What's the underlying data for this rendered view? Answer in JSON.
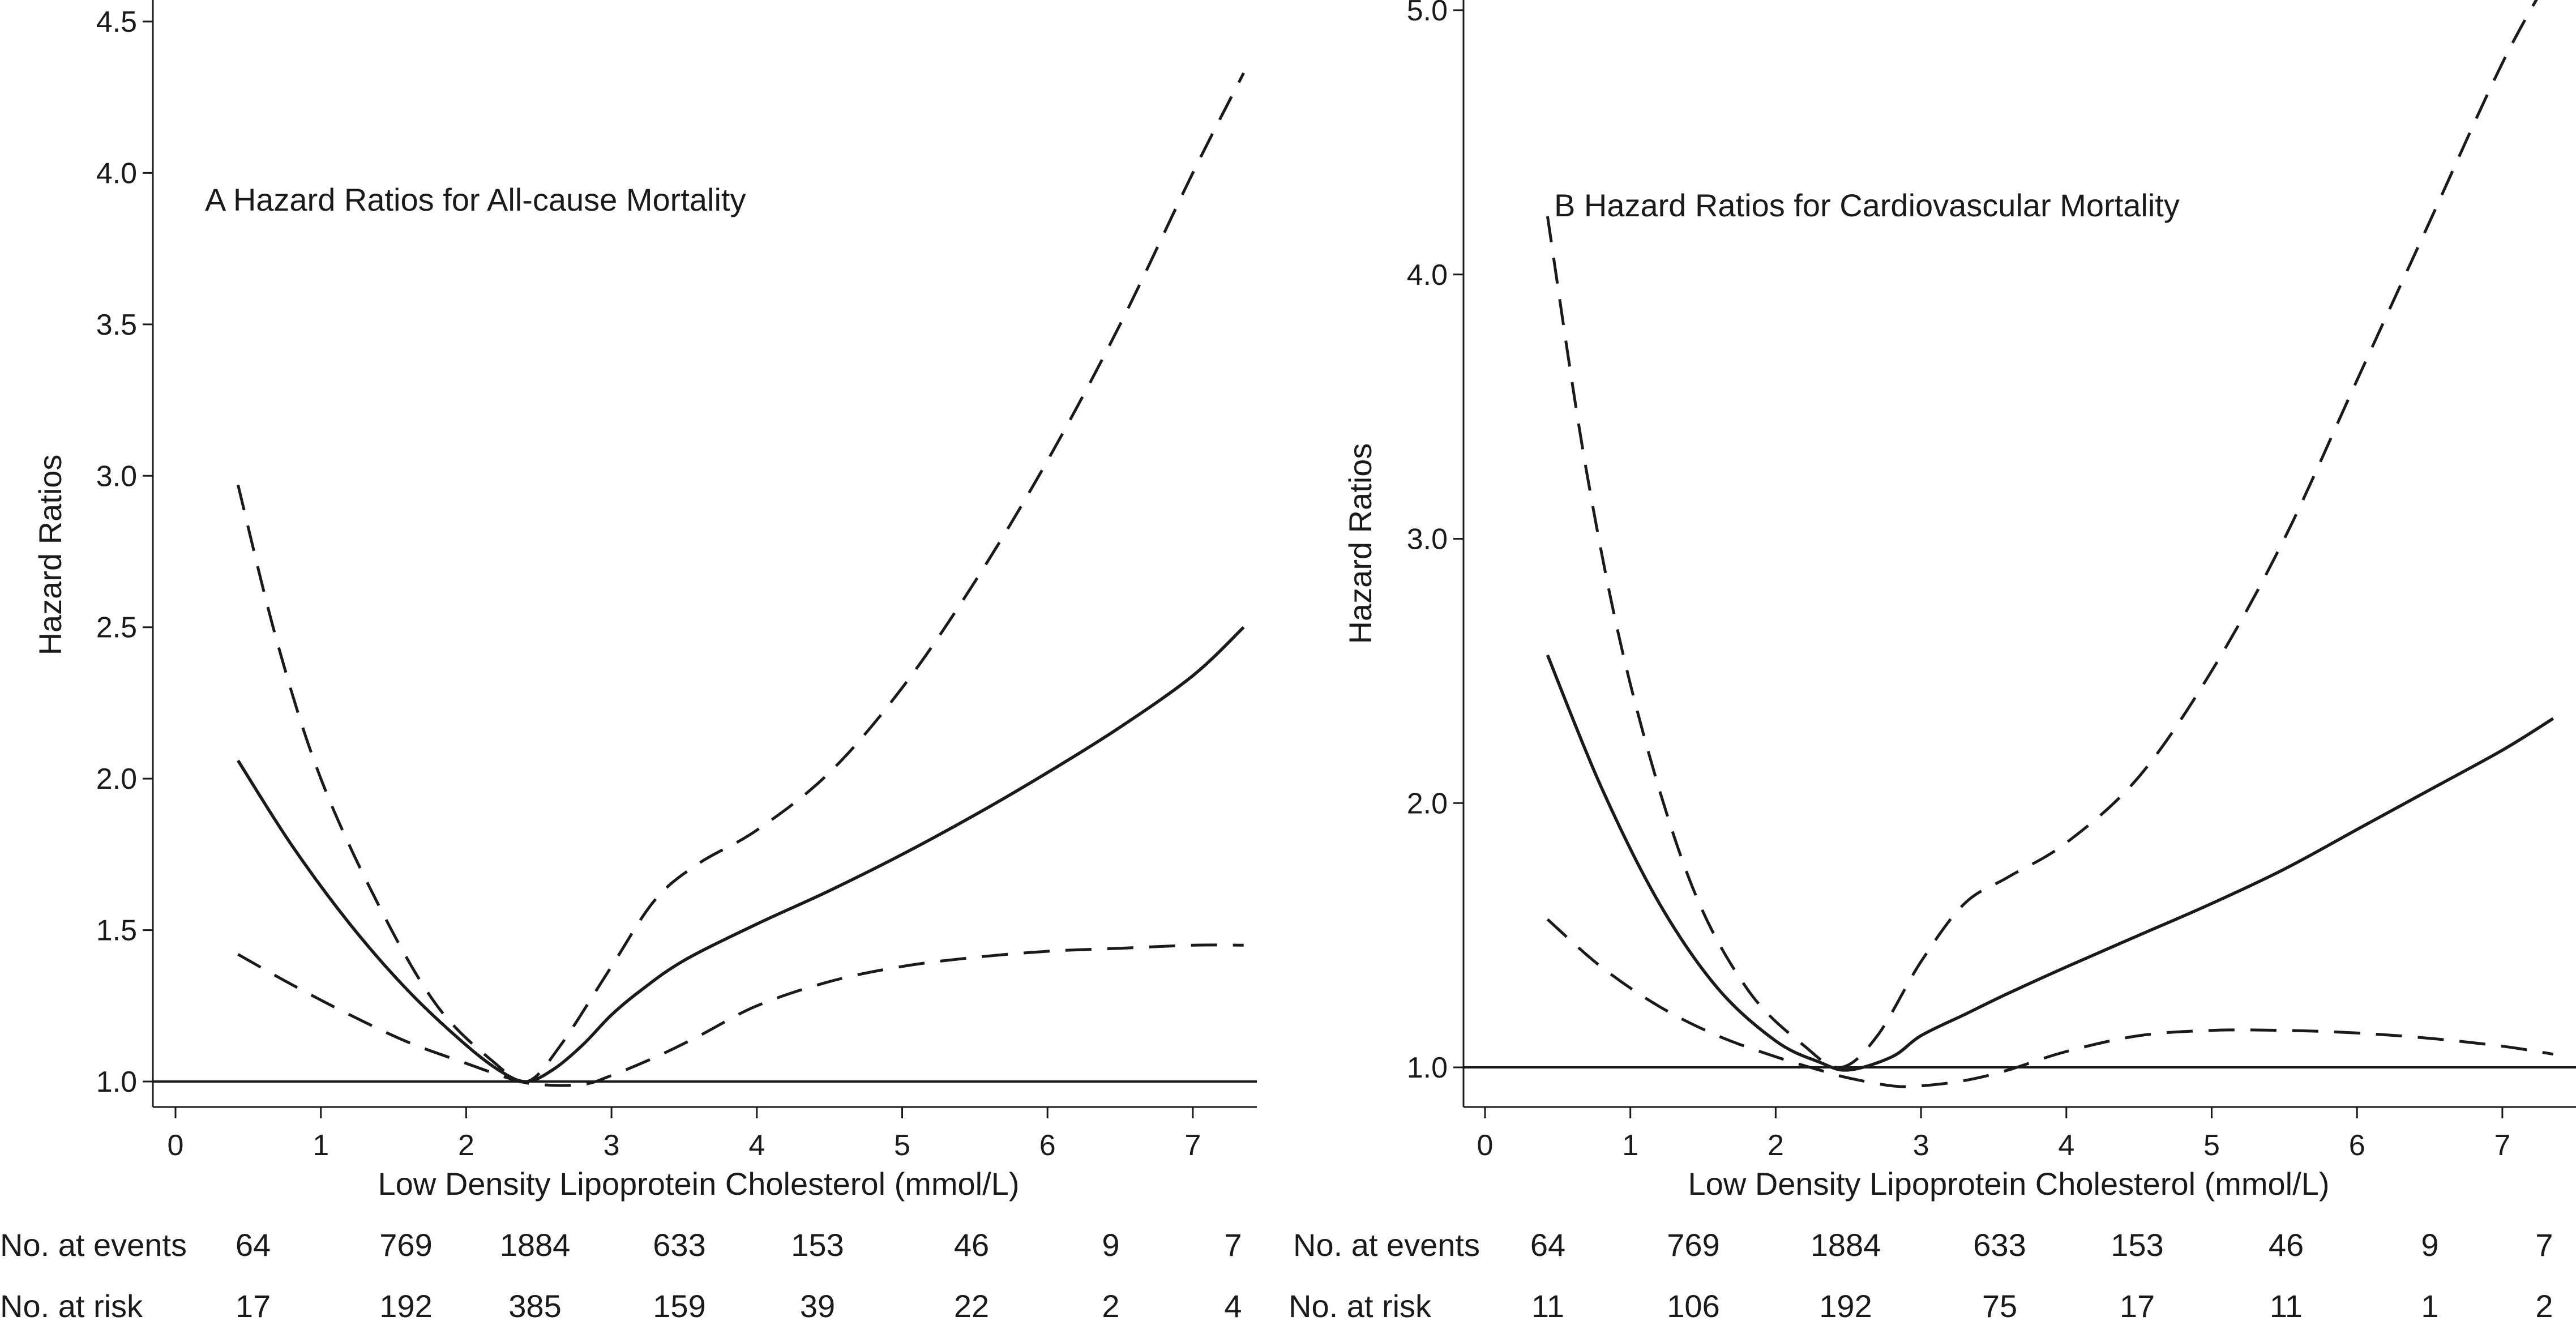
{
  "chart_data": [
    {
      "type": "line",
      "title": "A  Hazard Ratios for All-cause Mortality",
      "xlabel": "Low Density Lipoprotein Cholesterol (mmol/L)",
      "ylabel": "Hazard Ratios",
      "xlim": [
        -0.15,
        7.5
      ],
      "ylim": [
        0.92,
        4.55
      ],
      "xticks": [
        0,
        1,
        2,
        3,
        4,
        5,
        6,
        7
      ],
      "yticks": [
        1.0,
        1.5,
        2.0,
        2.5,
        3.0,
        3.5,
        4.0,
        4.5
      ],
      "ytick_labels": [
        "1.0",
        "1.5",
        "2.0",
        "2.5",
        "3.0",
        "3.5",
        "4.0",
        "4.5"
      ],
      "reference_line": 1.0,
      "series": [
        {
          "name": "Hazard ratio",
          "style": "solid",
          "x": [
            0.43,
            0.8,
            1.2,
            1.6,
            2.0,
            2.25,
            2.42,
            2.6,
            2.8,
            3.0,
            3.2,
            3.5,
            4.0,
            4.5,
            5.0,
            5.5,
            6.0,
            6.5,
            7.0,
            7.35
          ],
          "y": [
            2.06,
            1.78,
            1.52,
            1.3,
            1.12,
            1.03,
            1.0,
            1.04,
            1.12,
            1.22,
            1.3,
            1.4,
            1.52,
            1.63,
            1.75,
            1.88,
            2.02,
            2.17,
            2.34,
            2.5
          ]
        },
        {
          "name": "Upper 95% CI",
          "style": "dashed",
          "x": [
            0.43,
            0.7,
            1.0,
            1.4,
            1.8,
            2.2,
            2.42,
            2.65,
            3.0,
            3.3,
            3.6,
            4.0,
            4.5,
            5.0,
            5.5,
            6.0,
            6.5,
            7.0,
            7.35
          ],
          "y": [
            2.97,
            2.45,
            2.0,
            1.58,
            1.25,
            1.06,
            1.0,
            1.12,
            1.38,
            1.6,
            1.72,
            1.83,
            2.02,
            2.3,
            2.65,
            3.05,
            3.5,
            4.0,
            4.33
          ]
        },
        {
          "name": "Lower 95% CI",
          "style": "dashed",
          "x": [
            0.43,
            0.8,
            1.2,
            1.6,
            2.0,
            2.3,
            2.5,
            2.8,
            3.0,
            3.3,
            3.6,
            4.0,
            4.5,
            5.0,
            5.5,
            6.0,
            6.5,
            7.0,
            7.35
          ],
          "y": [
            1.42,
            1.32,
            1.22,
            1.13,
            1.06,
            1.01,
            0.99,
            0.99,
            1.02,
            1.08,
            1.15,
            1.25,
            1.33,
            1.38,
            1.41,
            1.43,
            1.44,
            1.45,
            1.45
          ]
        }
      ],
      "events_label": "No. at events",
      "risk_label": "No. at risk",
      "events": [
        "64",
        "769",
        "1884",
        "633",
        "153",
        "46",
        "9",
        "7"
      ],
      "at_risk": [
        "17",
        "192",
        "385",
        "159",
        "39",
        "22",
        "2",
        "4"
      ]
    },
    {
      "type": "line",
      "title": "B  Hazard Ratios for Cardiovascular Mortality",
      "xlabel": "Low Density Lipoprotein Cholesterol (mmol/L)",
      "ylabel": "Hazard Ratios",
      "xlim": [
        -0.15,
        7.5
      ],
      "ylim": [
        0.85,
        5.25
      ],
      "xticks": [
        0,
        1,
        2,
        3,
        4,
        5,
        6,
        7
      ],
      "yticks": [
        1.0,
        2.0,
        3.0,
        4.0,
        5.0
      ],
      "ytick_labels": [
        "1.0",
        "2.0",
        "3.0",
        "4.0",
        "5.0"
      ],
      "reference_line": 1.0,
      "series": [
        {
          "name": "Hazard ratio",
          "style": "solid",
          "x": [
            0.43,
            0.8,
            1.2,
            1.6,
            2.0,
            2.3,
            2.5,
            2.8,
            3.0,
            3.3,
            3.6,
            4.0,
            4.5,
            5.0,
            5.5,
            6.0,
            6.5,
            7.0,
            7.35
          ],
          "y": [
            2.56,
            2.06,
            1.62,
            1.3,
            1.1,
            1.02,
            0.99,
            1.04,
            1.12,
            1.2,
            1.28,
            1.38,
            1.5,
            1.62,
            1.75,
            1.9,
            2.05,
            2.2,
            2.32
          ]
        },
        {
          "name": "Upper 95% CI",
          "style": "dashed",
          "x": [
            0.43,
            0.7,
            1.0,
            1.4,
            1.8,
            2.2,
            2.45,
            2.7,
            3.0,
            3.3,
            3.6,
            4.0,
            4.5,
            5.0,
            5.5,
            6.0,
            6.5,
            7.0,
            7.35
          ],
          "y": [
            4.22,
            3.25,
            2.45,
            1.72,
            1.3,
            1.08,
            1.0,
            1.12,
            1.4,
            1.62,
            1.72,
            1.85,
            2.1,
            2.5,
            3.0,
            3.6,
            4.2,
            4.8,
            5.15
          ]
        },
        {
          "name": "Lower 95% CI",
          "style": "dashed",
          "x": [
            0.43,
            0.8,
            1.2,
            1.6,
            2.0,
            2.3,
            2.5,
            2.8,
            3.0,
            3.3,
            3.6,
            4.0,
            4.5,
            5.0,
            5.5,
            6.0,
            6.5,
            7.0,
            7.35
          ],
          "y": [
            1.56,
            1.38,
            1.23,
            1.12,
            1.04,
            0.99,
            0.96,
            0.93,
            0.93,
            0.95,
            0.99,
            1.06,
            1.12,
            1.14,
            1.14,
            1.13,
            1.11,
            1.08,
            1.05
          ]
        }
      ],
      "events_label": "No. at events",
      "risk_label": "No. at risk",
      "events": [
        "64",
        "769",
        "1884",
        "633",
        "153",
        "46",
        "9",
        "7"
      ],
      "at_risk": [
        "11",
        "106",
        "192",
        "75",
        "17",
        "11",
        "1",
        "2"
      ]
    }
  ]
}
